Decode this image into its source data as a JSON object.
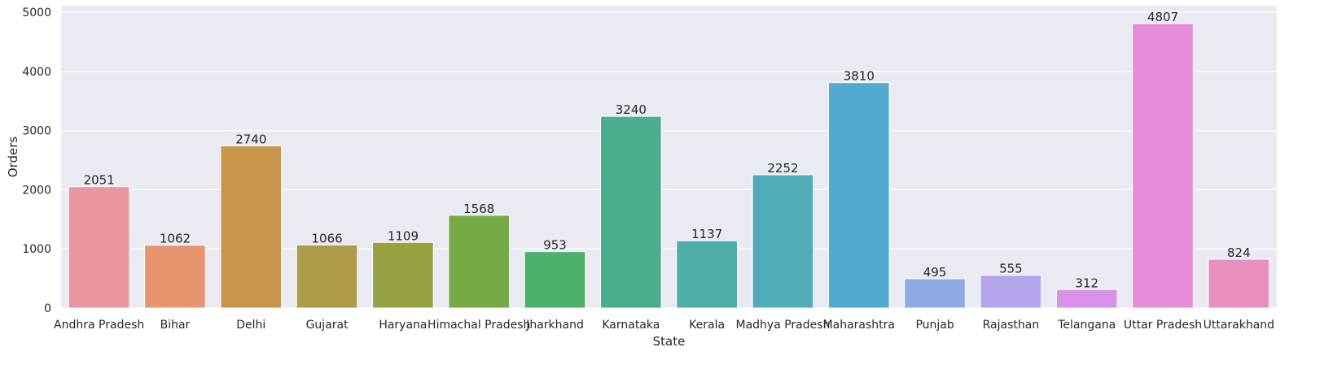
{
  "chart_data": {
    "type": "bar",
    "xlabel": "State",
    "ylabel": "Orders",
    "ylim": [
      0,
      5000
    ],
    "yticks": [
      0,
      1000,
      2000,
      3000,
      4000,
      5000
    ],
    "grid": true,
    "background": "#eaeaf2",
    "categories": [
      "Andhra Pradesh",
      "Bihar",
      "Delhi",
      "Gujarat",
      "Haryana",
      "Himachal Pradesh",
      "Jharkhand",
      "Karnataka",
      "Kerala",
      "Madhya Pradesh",
      "Maharashtra",
      "Punjab",
      "Rajasthan",
      "Telangana",
      "Uttar Pradesh",
      "Uttarakhand"
    ],
    "values": [
      2051,
      1062,
      2740,
      1066,
      1109,
      1568,
      953,
      3240,
      1137,
      2252,
      3810,
      495,
      555,
      312,
      4807,
      824
    ],
    "colors": [
      "#ea96a1",
      "#e6956f",
      "#c9954b",
      "#ad9b47",
      "#97a142",
      "#76aa45",
      "#4bb06a",
      "#4aad90",
      "#4cada9",
      "#4facb8",
      "#52aad1",
      "#8eabe6",
      "#b6a5ec",
      "#d892ea",
      "#e88cd9",
      "#e98fbe"
    ]
  }
}
